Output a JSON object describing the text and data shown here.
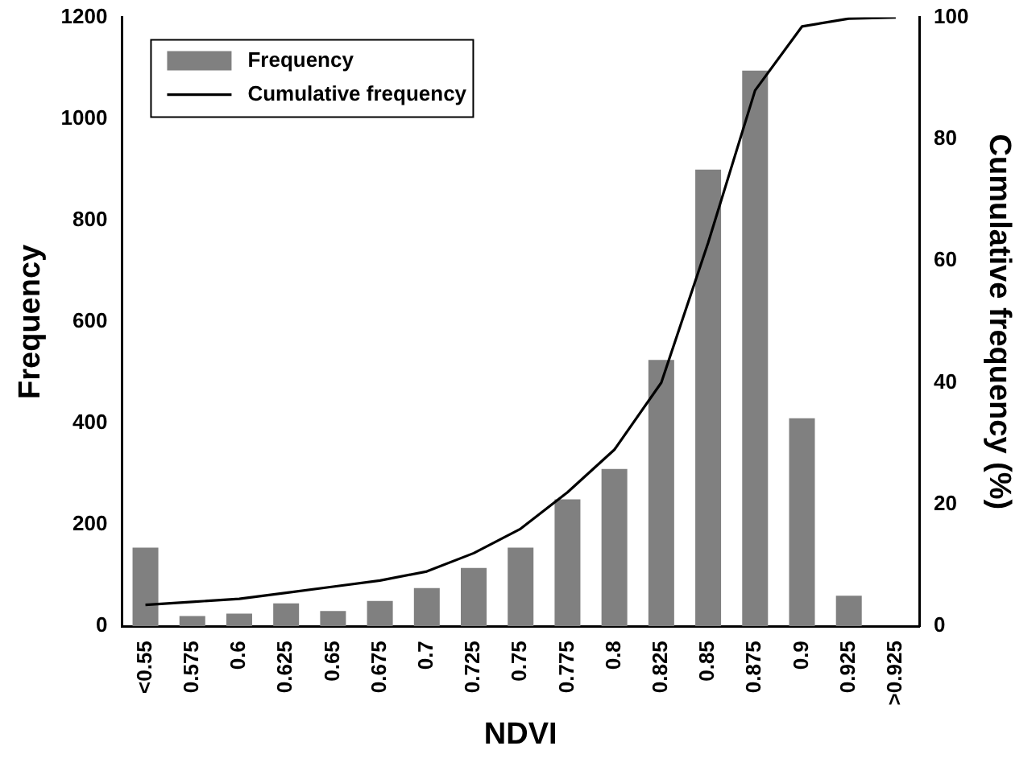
{
  "chart_data": {
    "type": "bar",
    "xlabel": "NDVI",
    "ylabel": "Frequency",
    "y2label": "Cumulative frequency (%)",
    "categories": [
      "<0.55",
      "0.575",
      "0.6",
      "0.625",
      "0.65",
      "0.675",
      "0.7",
      "0.725",
      "0.75",
      "0.775",
      "0.8",
      "0.825",
      "0.85",
      "0.875",
      "0.9",
      "0.925",
      ">0.925"
    ],
    "series": [
      {
        "name": "Frequency",
        "color": "#808080",
        "values": [
          155,
          20,
          25,
          45,
          30,
          50,
          75,
          115,
          155,
          250,
          310,
          525,
          900,
          1095,
          410,
          60,
          0
        ]
      },
      {
        "name": "Cumulative frequency",
        "type": "line",
        "axis": "y2",
        "color": "#000000",
        "values": [
          3.5,
          4,
          4.5,
          5.5,
          6.5,
          7.5,
          9,
          12,
          16,
          22,
          29,
          40,
          63,
          88,
          98.5,
          99.8,
          100
        ]
      }
    ],
    "ylim": [
      0,
      1200
    ],
    "yticks": [
      0,
      200,
      400,
      600,
      800,
      1000,
      1200
    ],
    "y2lim": [
      0,
      100
    ],
    "y2ticks": [
      0,
      20,
      40,
      60,
      80,
      100
    ],
    "grid": false,
    "legend": "top left",
    "marker": "none",
    "line_style": "solid"
  }
}
